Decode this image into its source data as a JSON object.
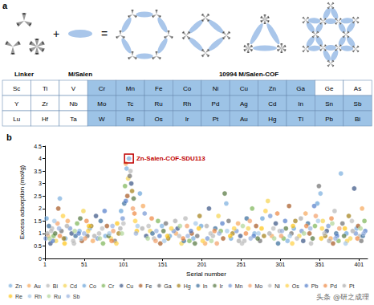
{
  "panel_a": {
    "label": "a",
    "headers": {
      "linker": "Linker",
      "salen": "M/Salen",
      "cof": "10994 M/Salen-COF"
    },
    "table": {
      "rows": [
        [
          "Sc",
          "Ti",
          "V",
          "Cr",
          "Mn",
          "Fe",
          "Co",
          "Ni",
          "Cu",
          "Zn",
          "Ga",
          "Ge",
          "As"
        ],
        [
          "Y",
          "Zr",
          "Nb",
          "Mo",
          "Tc",
          "Ru",
          "Rh",
          "Pd",
          "Ag",
          "Cd",
          "In",
          "Sn",
          "Sb"
        ],
        [
          "Lu",
          "Hf",
          "Ta",
          "W",
          "Re",
          "Os",
          "Ir",
          "Pt",
          "Au",
          "Hg",
          "Tl",
          "Pb",
          "Bi"
        ]
      ],
      "highlighted": [
        "Cr",
        "Mn",
        "Fe",
        "Co",
        "Ni",
        "Cu",
        "Zn",
        "Ga",
        "Mo",
        "Tc",
        "Ru",
        "Rh",
        "Pd",
        "Ag",
        "Cd",
        "In",
        "Sn",
        "Sb",
        "W",
        "Re",
        "Os",
        "Ir",
        "Pt",
        "Au",
        "Hg",
        "Tl",
        "Pb",
        "Bi"
      ]
    },
    "operators": [
      "+",
      "="
    ]
  },
  "chart_data": {
    "type": "scatter",
    "title": "b",
    "x_label": "Serial number",
    "y_label": "Excess adsorption (mol/g)",
    "xlim": [
      1,
      412
    ],
    "xticks": [
      1,
      51,
      101,
      151,
      201,
      251,
      301,
      351,
      401
    ],
    "ylim": [
      0,
      4.5
    ],
    "yticks": [
      0,
      0.5,
      1,
      1.5,
      2,
      2.5,
      3,
      3.5,
      4,
      4.5
    ],
    "grid": false,
    "legend": "bottom",
    "annotation": {
      "text": "Zn-Salen-COF-SDU113",
      "series": "Zn",
      "x": 108,
      "y": 4.0,
      "color": "#c00000"
    },
    "series": [
      {
        "name": "Zn",
        "color": "#6fa8dc",
        "x": [
          108,
          105,
          20,
          45,
          78,
          150,
          190,
          232,
          268,
          310,
          352,
          378,
          398
        ],
        "values": [
          4.0,
          3.6,
          2.4,
          1.1,
          0.9,
          1.3,
          0.8,
          2.2,
          1.0,
          0.7,
          2.6,
          3.4,
          1.2
        ]
      },
      {
        "name": "Au",
        "color": "#f6a04d",
        "x": [
          5,
          30,
          62,
          104,
          126,
          168,
          205,
          247,
          290,
          333,
          365,
          405
        ],
        "values": [
          0.9,
          1.5,
          0.7,
          3.8,
          2.1,
          1.0,
          0.6,
          1.4,
          0.9,
          1.8,
          0.8,
          2.0
        ]
      },
      {
        "name": "Bi",
        "color": "#b0b0b0",
        "x": [
          10,
          38,
          70,
          110,
          140,
          180,
          215,
          255,
          300,
          340,
          370,
          402
        ],
        "values": [
          1.2,
          0.6,
          1.0,
          3.5,
          0.8,
          1.6,
          0.9,
          0.7,
          1.1,
          0.6,
          1.9,
          0.9
        ]
      },
      {
        "name": "Cd",
        "color": "#f4d03f",
        "x": [
          15,
          50,
          85,
          107,
          135,
          175,
          222,
          260,
          285,
          325,
          355,
          390
        ],
        "values": [
          0.7,
          1.9,
          0.8,
          3.2,
          1.1,
          0.6,
          1.7,
          1.2,
          2.3,
          0.9,
          1.5,
          0.8
        ]
      },
      {
        "name": "Co",
        "color": "#5b9bd5",
        "x": [
          3,
          27,
          58,
          98,
          122,
          160,
          200,
          238,
          278,
          318,
          348,
          385
        ],
        "values": [
          1.6,
          0.8,
          1.2,
          1.9,
          2.6,
          0.9,
          1.3,
          0.8,
          1.6,
          1.2,
          2.2,
          1.0
        ]
      },
      {
        "name": "Cr",
        "color": "#70ad47",
        "x": [
          12,
          42,
          75,
          103,
          145,
          185,
          225,
          265,
          305,
          345,
          375,
          408
        ],
        "values": [
          0.9,
          1.4,
          0.6,
          2.9,
          1.5,
          0.7,
          1.1,
          2.0,
          0.8,
          1.3,
          0.7,
          1.5
        ]
      },
      {
        "name": "Cu",
        "color": "#264478",
        "x": [
          8,
          35,
          66,
          111,
          130,
          170,
          210,
          250,
          295,
          330,
          360,
          395
        ],
        "values": [
          0.6,
          1.0,
          1.7,
          3.0,
          0.9,
          1.2,
          2.0,
          0.9,
          1.4,
          0.7,
          1.1,
          2.8
        ]
      },
      {
        "name": "Fe",
        "color": "#9e480e",
        "x": [
          18,
          48,
          80,
          106,
          148,
          188,
          228,
          270,
          312,
          338,
          368,
          400
        ],
        "values": [
          2.0,
          0.7,
          1.3,
          2.5,
          0.6,
          1.0,
          0.8,
          1.3,
          2.1,
          1.0,
          0.6,
          1.3
        ]
      },
      {
        "name": "Ga",
        "color": "#636363",
        "x": [
          22,
          55,
          90,
          109,
          155,
          195,
          235,
          275,
          315,
          350,
          380,
          404
        ],
        "values": [
          1.1,
          0.9,
          0.7,
          3.3,
          1.4,
          0.9,
          1.5,
          0.7,
          1.0,
          2.9,
          1.4,
          0.7
        ]
      },
      {
        "name": "Hg",
        "color": "#997300",
        "x": [
          25,
          60,
          95,
          112,
          158,
          198,
          240,
          280,
          320,
          358,
          388
        ],
        "values": [
          0.8,
          1.3,
          1.0,
          2.7,
          0.8,
          1.7,
          1.0,
          0.9,
          1.5,
          0.9,
          1.7
        ]
      },
      {
        "name": "In",
        "color": "#255e91",
        "x": [
          6,
          40,
          72,
          102,
          138,
          178,
          218,
          258,
          298,
          336,
          372,
          406
        ],
        "values": [
          1.3,
          0.9,
          1.5,
          2.2,
          1.0,
          0.7,
          1.2,
          1.6,
          0.6,
          1.4,
          1.0,
          0.9
        ]
      },
      {
        "name": "Ir",
        "color": "#43682b",
        "x": [
          14,
          46,
          82,
          114,
          152,
          192,
          230,
          272,
          308,
          342,
          382
        ],
        "values": [
          1.0,
          1.6,
          0.9,
          2.4,
          1.1,
          0.6,
          2.6,
          0.8,
          1.2,
          0.8,
          0.9
        ]
      },
      {
        "name": "Mn",
        "color": "#698ed0",
        "x": [
          2,
          33,
          68,
          100,
          128,
          165,
          208,
          245,
          288,
          328,
          362,
          397
        ],
        "values": [
          0.8,
          1.2,
          0.8,
          1.6,
          1.8,
          1.1,
          0.8,
          1.1,
          1.7,
          1.1,
          1.3,
          1.0
        ]
      },
      {
        "name": "Mo",
        "color": "#f1975a",
        "x": [
          17,
          52,
          88,
          113,
          142,
          182,
          220,
          262,
          302,
          346,
          376
        ],
        "values": [
          1.4,
          0.8,
          1.1,
          2.0,
          0.7,
          1.3,
          0.6,
          1.5,
          0.9,
          1.7,
          1.2
        ]
      },
      {
        "name": "Ni",
        "color": "#b7b7b7",
        "x": [
          9,
          37,
          74,
          101,
          133,
          172,
          212,
          252,
          292,
          322,
          357,
          392
        ],
        "values": [
          1.1,
          0.7,
          1.2,
          1.4,
          1.3,
          0.9,
          1.0,
          0.6,
          1.2,
          0.8,
          1.0,
          1.5
        ]
      },
      {
        "name": "Os",
        "color": "#ffcd33",
        "x": [
          24,
          56,
          92,
          116,
          162,
          202,
          242,
          282,
          316,
          354,
          386
        ],
        "values": [
          1.7,
          1.1,
          0.6,
          1.5,
          1.2,
          0.7,
          1.2,
          1.9,
          0.6,
          1.2,
          0.7
        ]
      },
      {
        "name": "Pb",
        "color": "#4472c4",
        "x": [
          11,
          44,
          77,
          104,
          147,
          187,
          227,
          267,
          307,
          344,
          373,
          409
        ],
        "values": [
          0.7,
          1.0,
          1.9,
          2.3,
          0.9,
          1.1,
          1.4,
          0.9,
          1.5,
          2.1,
          0.9,
          1.1
        ]
      },
      {
        "name": "Pd",
        "color": "#ed7d31",
        "x": [
          20,
          54,
          86,
          115,
          137,
          177,
          217,
          257,
          297,
          334,
          366,
          399
        ],
        "values": [
          0.9,
          1.5,
          0.7,
          1.8,
          1.6,
          0.8,
          1.1,
          1.0,
          1.8,
          1.3,
          1.6,
          0.8
        ]
      },
      {
        "name": "Pt",
        "color": "#a5a5a5",
        "x": [
          4,
          29,
          64,
          97,
          125,
          167,
          207,
          248,
          287,
          327,
          363,
          393
        ],
        "values": [
          1.0,
          1.3,
          0.9,
          1.2,
          1.2,
          1.5,
          1.3,
          0.7,
          1.0,
          1.6,
          0.7,
          1.1
        ]
      },
      {
        "name": "Re",
        "color": "#ffc000",
        "x": [
          26,
          57,
          93,
          118,
          157,
          197,
          237,
          277,
          317,
          353,
          383
        ],
        "values": [
          0.6,
          1.3,
          1.4,
          1.1,
          0.9,
          1.2,
          0.9,
          1.2,
          1.3,
          0.8,
          1.2
        ]
      },
      {
        "name": "Rh",
        "color": "#9dc3e6",
        "x": [
          13,
          47,
          83,
          119,
          153,
          193,
          233,
          273,
          313,
          349,
          384
        ],
        "values": [
          1.5,
          0.8,
          1.0,
          1.3,
          0.7,
          1.4,
          1.1,
          1.0,
          0.9,
          1.5,
          0.6
        ]
      },
      {
        "name": "Ru",
        "color": "#a9d18e",
        "x": [
          7,
          39,
          71,
          99,
          132,
          173,
          213,
          253,
          293,
          331,
          367,
          403
        ],
        "values": [
          0.8,
          1.1,
          0.8,
          1.0,
          0.8,
          1.3,
          0.7,
          1.3,
          0.8,
          1.0,
          1.4,
          1.2
        ]
      },
      {
        "name": "Sb",
        "color": "#8faadc",
        "x": [
          19,
          51,
          87,
          117,
          143,
          183,
          223,
          263,
          303,
          339,
          371,
          407
        ],
        "values": [
          1.2,
          1.0,
          1.3,
          1.0,
          1.1,
          0.9,
          1.0,
          0.8,
          1.1,
          1.2,
          0.8,
          1.0
        ]
      }
    ]
  },
  "watermark": "头条 @研之成理"
}
